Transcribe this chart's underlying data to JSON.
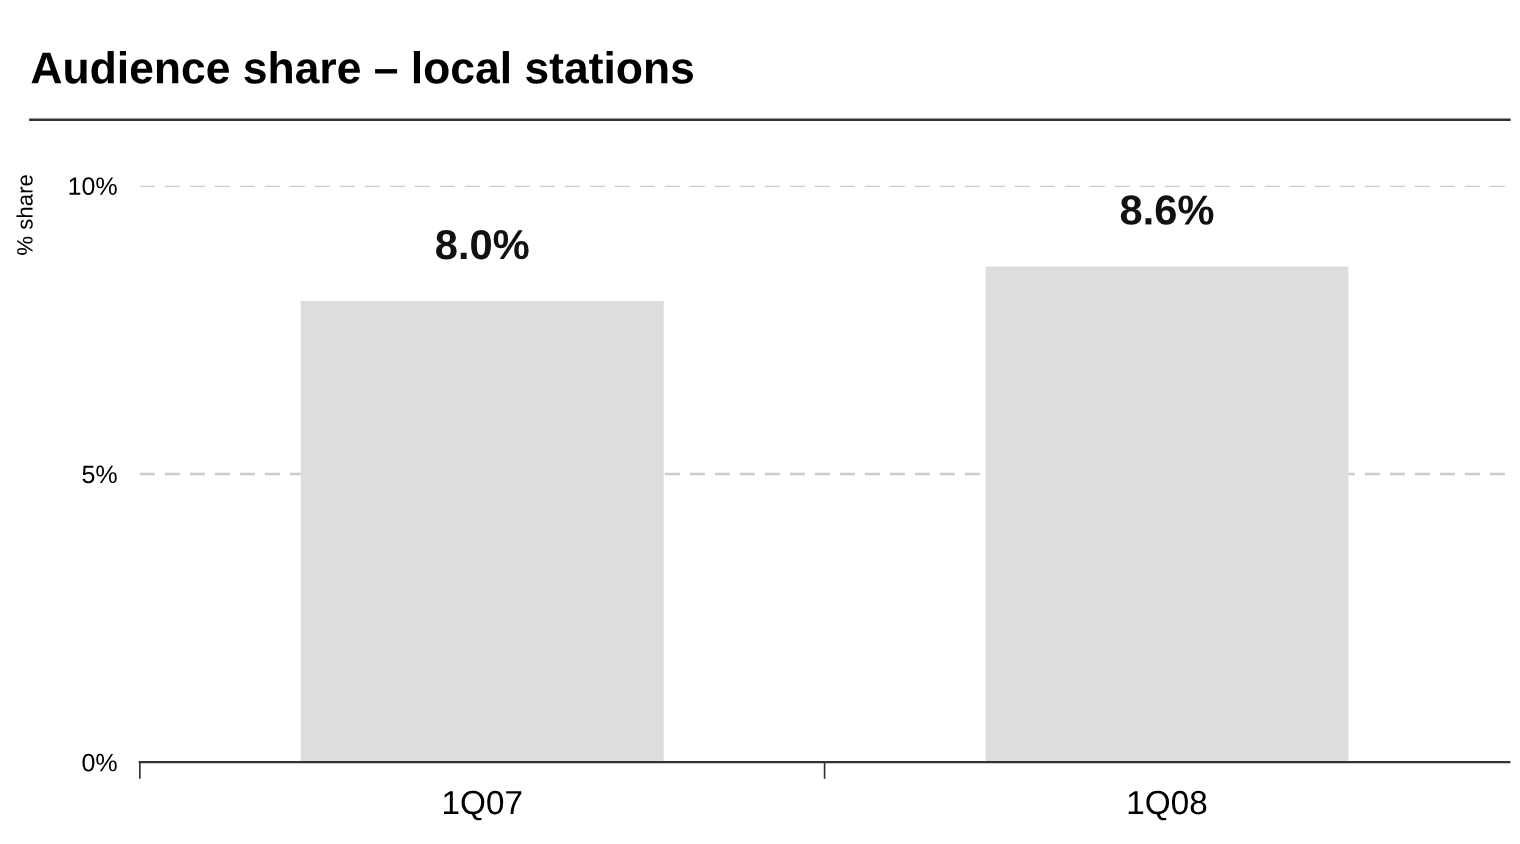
{
  "chart_data": {
    "type": "bar",
    "title": "Audience share – local stations",
    "ylabel": "% share",
    "categories": [
      "1Q07",
      "1Q08"
    ],
    "values": [
      8.0,
      8.6
    ],
    "color": "#dddddd",
    "value_labels": [
      "8.0%",
      "8.6%"
    ],
    "ylim": [
      0,
      10
    ],
    "yticks": [
      {
        "value": 0,
        "label": "0%"
      },
      {
        "value": 5,
        "label": "5%"
      },
      {
        "value": 10,
        "label": "10%"
      }
    ],
    "grid": "y",
    "legend": false
  }
}
